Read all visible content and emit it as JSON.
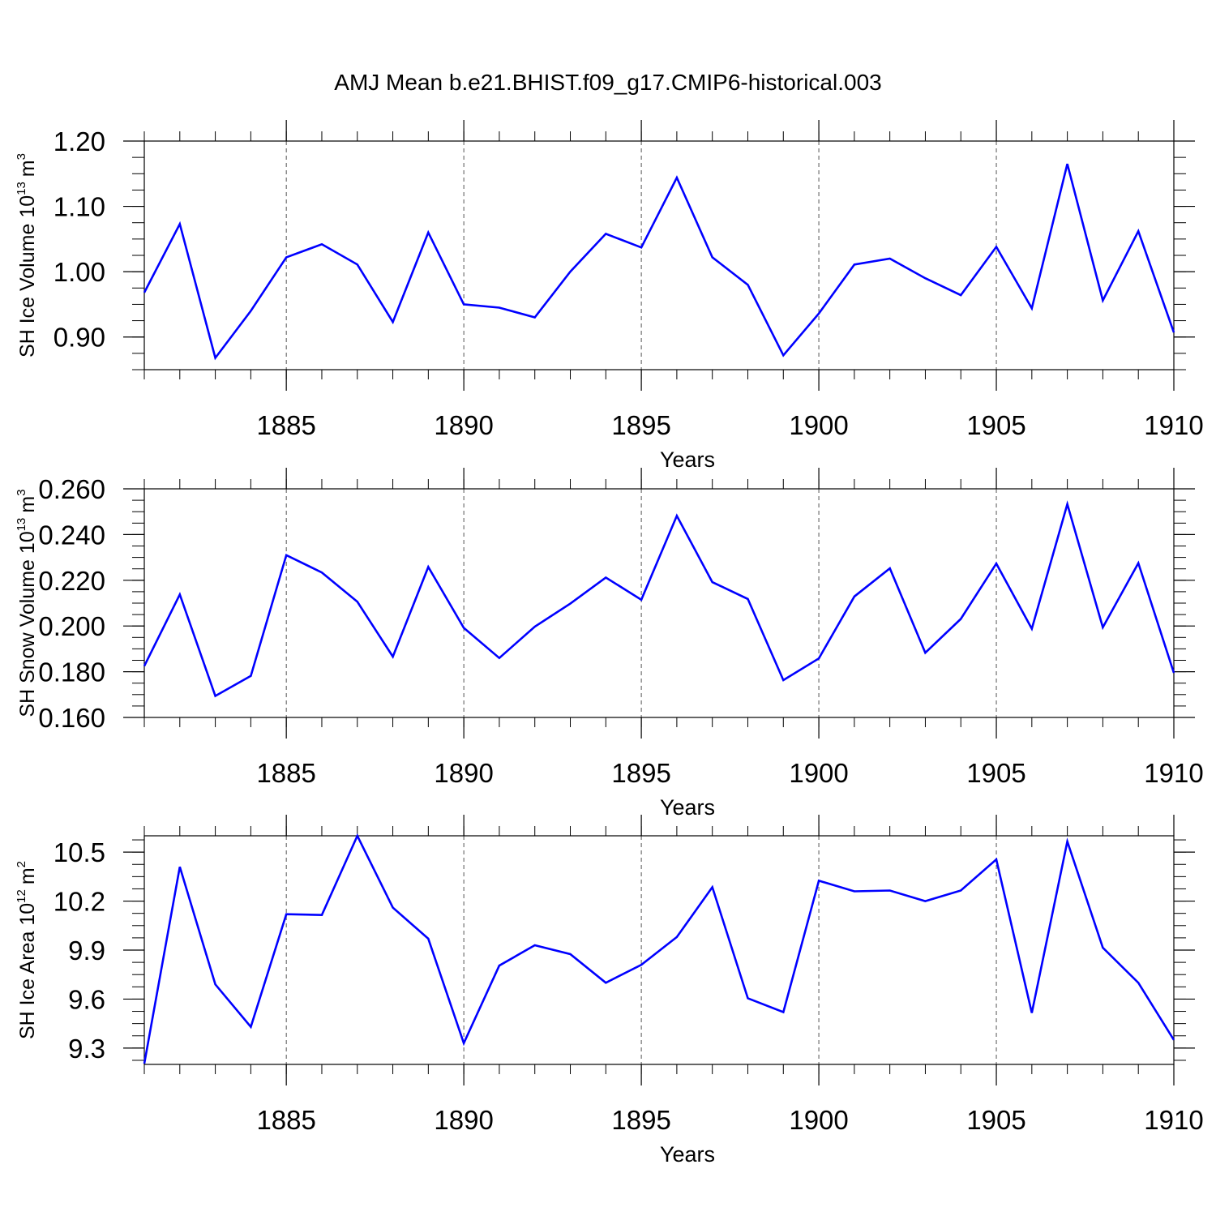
{
  "chart_data": [
    {
      "type": "line",
      "title": "AMJ Mean b.e21.BHIST.f09_g17.CMIP6-historical.003",
      "xlabel": "Years",
      "ylabel": "SH Ice Volume 10",
      "ylabel_exp": "13",
      "ylabel_unit": "m",
      "ylabel_unit_exp": "3",
      "xlim": [
        1881,
        1910
      ],
      "ylim": [
        0.85,
        1.2
      ],
      "yticks": [
        0.9,
        1.0,
        1.1,
        1.2
      ],
      "ytick_labels": [
        "0.90",
        "1.00",
        "1.10",
        "1.20"
      ],
      "xticks": [
        1885,
        1890,
        1895,
        1900,
        1905,
        1910
      ],
      "xtick_labels": [
        "1885",
        "1890",
        "1895",
        "1900",
        "1905",
        "1910"
      ],
      "line_color": "#0000ff",
      "series": [
        {
          "name": "SH Ice Volume",
          "x": [
            1881,
            1882,
            1883,
            1884,
            1885,
            1886,
            1887,
            1888,
            1889,
            1890,
            1891,
            1892,
            1893,
            1894,
            1895,
            1896,
            1897,
            1898,
            1899,
            1900,
            1901,
            1902,
            1903,
            1904,
            1905,
            1906,
            1907,
            1908,
            1909,
            1910
          ],
          "values": [
            0.968,
            1.073,
            0.868,
            0.94,
            1.022,
            1.042,
            1.011,
            0.923,
            1.06,
            0.95,
            0.945,
            0.93,
            1.0,
            1.058,
            1.037,
            1.144,
            1.022,
            0.98,
            0.872,
            0.936,
            1.011,
            1.02,
            0.99,
            0.964,
            1.038,
            0.944,
            1.165,
            0.956,
            1.062,
            0.907
          ]
        }
      ]
    },
    {
      "type": "line",
      "xlabel": "Years",
      "ylabel": "SH Snow Volume 10",
      "ylabel_exp": "13",
      "ylabel_unit": "m",
      "ylabel_unit_exp": "3",
      "xlim": [
        1881,
        1910
      ],
      "ylim": [
        0.16,
        0.26
      ],
      "yticks": [
        0.16,
        0.18,
        0.2,
        0.22,
        0.24,
        0.26
      ],
      "ytick_labels": [
        "0.160",
        "0.180",
        "0.200",
        "0.220",
        "0.240",
        "0.260"
      ],
      "xticks": [
        1885,
        1890,
        1895,
        1900,
        1905,
        1910
      ],
      "xtick_labels": [
        "1885",
        "1890",
        "1895",
        "1900",
        "1905",
        "1910"
      ],
      "line_color": "#0000ff",
      "series": [
        {
          "name": "SH Snow Volume",
          "x": [
            1881,
            1882,
            1883,
            1884,
            1885,
            1886,
            1887,
            1888,
            1889,
            1890,
            1891,
            1892,
            1893,
            1894,
            1895,
            1896,
            1897,
            1898,
            1899,
            1900,
            1901,
            1902,
            1903,
            1904,
            1905,
            1906,
            1907,
            1908,
            1909,
            1910
          ],
          "values": [
            0.1825,
            0.2138,
            0.1694,
            0.1782,
            0.231,
            0.2234,
            0.2106,
            0.1866,
            0.2258,
            0.1992,
            0.186,
            0.1997,
            0.2098,
            0.2212,
            0.2115,
            0.2482,
            0.2192,
            0.2118,
            0.1763,
            0.1858,
            0.2129,
            0.2252,
            0.1883,
            0.2031,
            0.2273,
            0.1988,
            0.2533,
            0.1994,
            0.2275,
            0.1795
          ]
        }
      ]
    },
    {
      "type": "line",
      "xlabel": "Years",
      "ylabel": "SH Ice Area 10",
      "ylabel_exp": "12",
      "ylabel_unit": "m",
      "ylabel_unit_exp": "2",
      "xlim": [
        1881,
        1910
      ],
      "ylim": [
        9.2,
        10.6
      ],
      "yticks": [
        9.3,
        9.6,
        9.9,
        10.2,
        10.5
      ],
      "ytick_labels": [
        "9.3",
        "9.6",
        "9.9",
        "10.2",
        "10.5"
      ],
      "xticks": [
        1885,
        1890,
        1895,
        1900,
        1905,
        1910
      ],
      "xtick_labels": [
        "1885",
        "1890",
        "1895",
        "1900",
        "1905",
        "1910"
      ],
      "line_color": "#0000ff",
      "series": [
        {
          "name": "SH Ice Area",
          "x": [
            1881,
            1882,
            1883,
            1884,
            1885,
            1886,
            1887,
            1888,
            1889,
            1890,
            1891,
            1892,
            1893,
            1894,
            1895,
            1896,
            1897,
            1898,
            1899,
            1900,
            1901,
            1902,
            1903,
            1904,
            1905,
            1906,
            1907,
            1908,
            1909,
            1910
          ],
          "values": [
            9.205,
            10.41,
            9.69,
            9.43,
            10.12,
            10.115,
            10.6,
            10.16,
            9.97,
            9.33,
            9.805,
            9.93,
            9.875,
            9.7,
            9.81,
            9.98,
            10.285,
            9.605,
            9.52,
            10.325,
            10.26,
            10.265,
            10.2,
            10.265,
            10.455,
            9.515,
            10.565,
            9.915,
            9.7,
            9.35
          ]
        }
      ]
    }
  ]
}
